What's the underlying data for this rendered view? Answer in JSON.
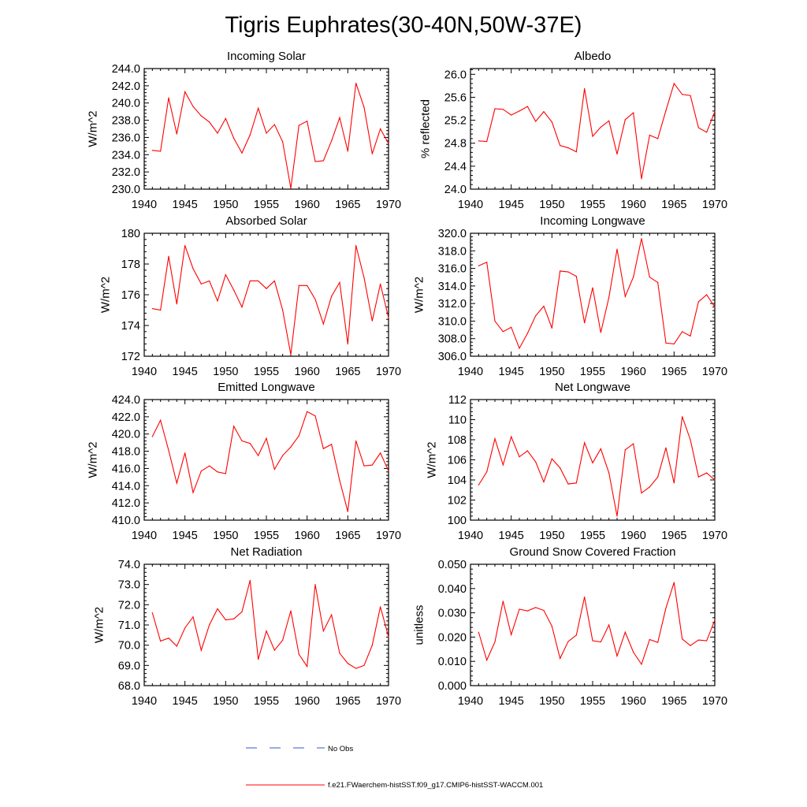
{
  "figure": {
    "title": "Tigris Euphrates(30-40N,50W-37E)"
  },
  "legend": {
    "items": [
      {
        "label": "No Obs",
        "color": "#3355cc",
        "style": "dashed"
      },
      {
        "label": "f.e21.FWaerchem-histSST.f09_g17.CMIP6-histSST-WACCM.001",
        "color": "#ff0000",
        "style": "solid"
      }
    ]
  },
  "chart_data": [
    {
      "type": "line",
      "title": "Incoming Solar",
      "xlabel": "",
      "ylabel": "W/m^2",
      "xlim": [
        1940,
        1970
      ],
      "ylim": [
        230.0,
        244.0
      ],
      "xticks": [
        "1940",
        "1945",
        "1950",
        "1955",
        "1960",
        "1965",
        "1970"
      ],
      "yticks": [
        "230.0",
        "232.0",
        "234.0",
        "236.0",
        "238.0",
        "240.0",
        "242.0",
        "244.0"
      ],
      "series": [
        {
          "color": "#ff0000",
          "x": [
            1941,
            1942,
            1943,
            1944,
            1945,
            1946,
            1947,
            1948,
            1949,
            1950,
            1951,
            1952,
            1953,
            1954,
            1955,
            1956,
            1957,
            1958,
            1959,
            1960,
            1961,
            1962,
            1963,
            1964,
            1965,
            1966,
            1967,
            1968,
            1969,
            1970
          ],
          "y": [
            234.5,
            234.4,
            240.6,
            236.4,
            241.3,
            239.6,
            238.5,
            237.8,
            236.5,
            238.2,
            235.9,
            234.2,
            236.3,
            239.4,
            236.5,
            237.5,
            235.5,
            230.1,
            237.4,
            237.9,
            233.2,
            233.3,
            235.6,
            238.3,
            234.4,
            242.3,
            239.5,
            234.1,
            237.0,
            235.3
          ]
        }
      ]
    },
    {
      "type": "line",
      "title": "Albedo",
      "xlabel": "",
      "ylabel": "% reflected",
      "xlim": [
        1940,
        1970
      ],
      "ylim": [
        24.0,
        26.1
      ],
      "xticks": [
        "1940",
        "1945",
        "1950",
        "1955",
        "1960",
        "1965",
        "1970"
      ],
      "yticks": [
        "24.0",
        "24.4",
        "24.8",
        "25.2",
        "25.6",
        "26.0"
      ],
      "series": [
        {
          "color": "#ff0000",
          "x": [
            1941,
            1942,
            1943,
            1944,
            1945,
            1946,
            1947,
            1948,
            1949,
            1950,
            1951,
            1952,
            1953,
            1954,
            1955,
            1956,
            1957,
            1958,
            1959,
            1960,
            1961,
            1962,
            1963,
            1964,
            1965,
            1966,
            1967,
            1968,
            1969,
            1970
          ],
          "y": [
            24.84,
            24.83,
            25.4,
            25.39,
            25.29,
            25.36,
            25.44,
            25.18,
            25.35,
            25.17,
            24.76,
            24.72,
            24.65,
            25.75,
            24.92,
            25.08,
            25.19,
            24.61,
            25.21,
            25.33,
            24.18,
            24.94,
            24.88,
            25.37,
            25.84,
            25.65,
            25.63,
            25.07,
            24.99,
            25.35
          ]
        }
      ]
    },
    {
      "type": "line",
      "title": "Absorbed Solar",
      "xlabel": "",
      "ylabel": "W/m^2",
      "xlim": [
        1940,
        1970
      ],
      "ylim": [
        172,
        180
      ],
      "xticks": [
        "1940",
        "1945",
        "1950",
        "1955",
        "1960",
        "1965",
        "1970"
      ],
      "yticks": [
        "172",
        "174",
        "176",
        "178",
        "180"
      ],
      "series": [
        {
          "color": "#ff0000",
          "x": [
            1941,
            1942,
            1943,
            1944,
            1945,
            1946,
            1947,
            1948,
            1949,
            1950,
            1951,
            1952,
            1953,
            1954,
            1955,
            1956,
            1957,
            1958,
            1959,
            1960,
            1961,
            1962,
            1963,
            1964,
            1965,
            1966,
            1967,
            1968,
            1969,
            1970
          ],
          "y": [
            175.1,
            175.0,
            178.5,
            175.4,
            179.2,
            177.7,
            176.7,
            176.9,
            175.6,
            177.3,
            176.3,
            175.2,
            176.9,
            176.9,
            176.4,
            176.9,
            175.0,
            172.1,
            176.6,
            176.6,
            175.7,
            174.1,
            175.9,
            176.8,
            172.8,
            179.2,
            177.1,
            174.3,
            176.7,
            174.5
          ]
        }
      ]
    },
    {
      "type": "line",
      "title": "Incoming Longwave",
      "xlabel": "",
      "ylabel": "W/m^2",
      "xlim": [
        1940,
        1970
      ],
      "ylim": [
        306.0,
        320.0
      ],
      "xticks": [
        "1940",
        "1945",
        "1950",
        "1955",
        "1960",
        "1965",
        "1970"
      ],
      "yticks": [
        "306.0",
        "308.0",
        "310.0",
        "312.0",
        "314.0",
        "316.0",
        "318.0",
        "320.0"
      ],
      "series": [
        {
          "color": "#ff0000",
          "x": [
            1941,
            1942,
            1943,
            1944,
            1945,
            1946,
            1947,
            1948,
            1949,
            1950,
            1951,
            1952,
            1953,
            1954,
            1955,
            1956,
            1957,
            1958,
            1959,
            1960,
            1961,
            1962,
            1963,
            1964,
            1965,
            1966,
            1967,
            1968,
            1969,
            1970
          ],
          "y": [
            316.3,
            316.7,
            310.0,
            308.8,
            309.3,
            306.9,
            308.6,
            310.6,
            311.7,
            309.2,
            315.7,
            315.6,
            315.1,
            309.8,
            313.8,
            308.7,
            312.7,
            318.2,
            312.8,
            315.0,
            319.4,
            315.0,
            314.4,
            307.5,
            307.4,
            308.8,
            308.3,
            312.2,
            313.0,
            311.6
          ]
        }
      ]
    },
    {
      "type": "line",
      "title": "Emitted Longwave",
      "xlabel": "",
      "ylabel": "W/m^2",
      "xlim": [
        1940,
        1970
      ],
      "ylim": [
        410.0,
        424.0
      ],
      "xticks": [
        "1940",
        "1945",
        "1950",
        "1955",
        "1960",
        "1965",
        "1970"
      ],
      "yticks": [
        "410.0",
        "412.0",
        "414.0",
        "416.0",
        "418.0",
        "420.0",
        "422.0",
        "424.0"
      ],
      "series": [
        {
          "color": "#ff0000",
          "x": [
            1941,
            1942,
            1943,
            1944,
            1945,
            1946,
            1947,
            1948,
            1949,
            1950,
            1951,
            1952,
            1953,
            1954,
            1955,
            1956,
            1957,
            1958,
            1959,
            1960,
            1961,
            1962,
            1963,
            1964,
            1965,
            1966,
            1967,
            1968,
            1969,
            1970
          ],
          "y": [
            419.7,
            421.6,
            418.1,
            414.3,
            417.8,
            413.2,
            415.7,
            416.3,
            415.6,
            415.4,
            420.9,
            419.2,
            418.9,
            417.5,
            419.5,
            415.9,
            417.5,
            418.5,
            419.8,
            422.6,
            422.1,
            418.3,
            418.8,
            414.6,
            411.0,
            419.2,
            416.3,
            416.4,
            417.8,
            415.7
          ]
        }
      ]
    },
    {
      "type": "line",
      "title": "Net Longwave",
      "xlabel": "",
      "ylabel": "W/m^2",
      "xlim": [
        1940,
        1970
      ],
      "ylim": [
        100,
        112
      ],
      "xticks": [
        "1940",
        "1945",
        "1950",
        "1955",
        "1960",
        "1965",
        "1970"
      ],
      "yticks": [
        "100",
        "102",
        "104",
        "106",
        "108",
        "110",
        "112"
      ],
      "series": [
        {
          "color": "#ff0000",
          "x": [
            1941,
            1942,
            1943,
            1944,
            1945,
            1946,
            1947,
            1948,
            1949,
            1950,
            1951,
            1952,
            1953,
            1954,
            1955,
            1956,
            1957,
            1958,
            1959,
            1960,
            1961,
            1962,
            1963,
            1964,
            1965,
            1966,
            1967,
            1968,
            1969,
            1970
          ],
          "y": [
            103.5,
            104.8,
            108.1,
            105.5,
            108.3,
            106.3,
            106.9,
            105.8,
            103.8,
            106.1,
            105.2,
            103.6,
            103.7,
            107.7,
            105.7,
            107.1,
            104.7,
            100.4,
            107.0,
            107.6,
            102.7,
            103.3,
            104.3,
            107.2,
            103.7,
            110.3,
            108.0,
            104.3,
            104.7,
            104.0
          ]
        }
      ]
    },
    {
      "type": "line",
      "title": "Net Radiation",
      "xlabel": "",
      "ylabel": "W/m^2",
      "xlim": [
        1940,
        1970
      ],
      "ylim": [
        68.0,
        74.0
      ],
      "xticks": [
        "1940",
        "1945",
        "1950",
        "1955",
        "1960",
        "1965",
        "1970"
      ],
      "yticks": [
        "68.0",
        "69.0",
        "70.0",
        "71.0",
        "72.0",
        "73.0",
        "74.0"
      ],
      "series": [
        {
          "color": "#ff0000",
          "x": [
            1941,
            1942,
            1943,
            1944,
            1945,
            1946,
            1947,
            1948,
            1949,
            1950,
            1951,
            1952,
            1953,
            1954,
            1955,
            1956,
            1957,
            1958,
            1959,
            1960,
            1961,
            1962,
            1963,
            1964,
            1965,
            1966,
            1967,
            1968,
            1969,
            1970
          ],
          "y": [
            71.6,
            70.2,
            70.35,
            69.95,
            70.85,
            71.4,
            69.75,
            71.0,
            71.8,
            71.25,
            71.3,
            71.65,
            73.2,
            69.3,
            70.7,
            69.75,
            70.25,
            71.7,
            69.55,
            68.95,
            73.0,
            70.7,
            71.5,
            69.6,
            69.1,
            68.85,
            69.0,
            70.0,
            71.9,
            70.4
          ]
        }
      ]
    },
    {
      "type": "line",
      "title": "Ground Snow Covered Fraction",
      "xlabel": "",
      "ylabel": "unitless",
      "xlim": [
        1940,
        1970
      ],
      "ylim": [
        0.0,
        0.05
      ],
      "xticks": [
        "1940",
        "1945",
        "1950",
        "1955",
        "1960",
        "1965",
        "1970"
      ],
      "yticks": [
        "0.000",
        "0.010",
        "0.020",
        "0.030",
        "0.040",
        "0.050"
      ],
      "series": [
        {
          "color": "#ff0000",
          "x": [
            1941,
            1942,
            1943,
            1944,
            1945,
            1946,
            1947,
            1948,
            1949,
            1950,
            1951,
            1952,
            1953,
            1954,
            1955,
            1956,
            1957,
            1958,
            1959,
            1960,
            1961,
            1962,
            1963,
            1964,
            1965,
            1966,
            1967,
            1968,
            1969,
            1970
          ],
          "y": [
            0.022,
            0.0105,
            0.018,
            0.0348,
            0.021,
            0.0315,
            0.0308,
            0.0322,
            0.031,
            0.0245,
            0.0112,
            0.0182,
            0.0208,
            0.0365,
            0.0185,
            0.018,
            0.025,
            0.0122,
            0.022,
            0.0138,
            0.0088,
            0.019,
            0.0178,
            0.032,
            0.0425,
            0.0192,
            0.0165,
            0.0188,
            0.0185,
            0.027
          ]
        }
      ]
    }
  ]
}
